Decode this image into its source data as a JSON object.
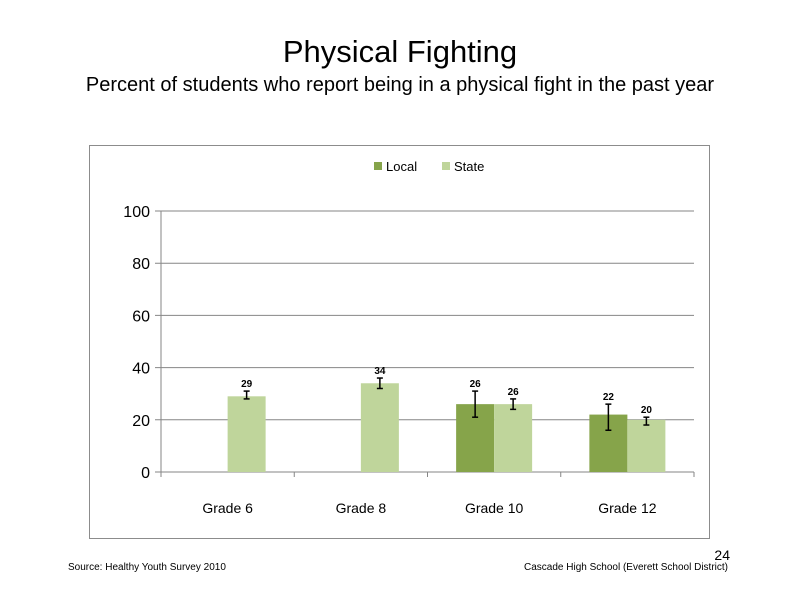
{
  "slide": {
    "title": "Physical Fighting",
    "subtitle": "Percent of students who report being in a physical fight in the past year",
    "source": "Source: Healthy Youth Survey 2010",
    "school": "Cascade High School (Everett School District)",
    "page_number": "24"
  },
  "chart_data": {
    "type": "bar",
    "categories": [
      "Grade 6",
      "Grade 8",
      "Grade 10",
      "Grade 12"
    ],
    "series": [
      {
        "name": "Local",
        "color": "#86a44a",
        "values": [
          null,
          null,
          26,
          22
        ],
        "error_low": [
          null,
          null,
          21,
          16
        ],
        "error_high": [
          null,
          null,
          31,
          26
        ]
      },
      {
        "name": "State",
        "color": "#bfd59b",
        "values": [
          29,
          34,
          26,
          20
        ],
        "error_low": [
          28,
          32,
          24,
          18
        ],
        "error_high": [
          31,
          36,
          28,
          21
        ]
      }
    ],
    "data_labels": [
      [
        null,
        null,
        "26",
        "22"
      ],
      [
        "29",
        "34",
        "26",
        "20"
      ]
    ],
    "ylim": [
      0,
      100
    ],
    "yticks": [
      0,
      20,
      40,
      60,
      80,
      100
    ],
    "grid": true,
    "legend_position": "top-center",
    "error_bars": true
  }
}
